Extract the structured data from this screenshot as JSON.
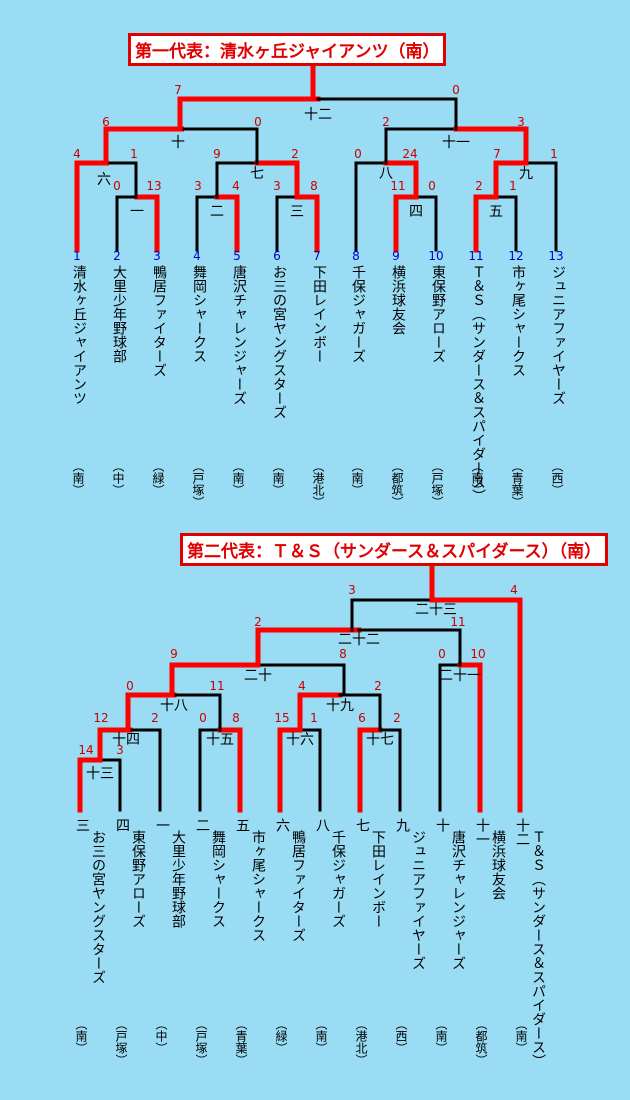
{
  "bracket1": {
    "title": "第一代表：清水ヶ丘ジャイアンツ（南）",
    "teams": [
      {
        "seed": "1",
        "name": "清水ヶ丘ジャイアンツ",
        "area": "（南）"
      },
      {
        "seed": "2",
        "name": "大里少年野球部",
        "area": "（中）"
      },
      {
        "seed": "3",
        "name": "鴨居ファイターズ",
        "area": "（緑）"
      },
      {
        "seed": "4",
        "name": "舞岡シャークス",
        "area": "（戸塚）"
      },
      {
        "seed": "5",
        "name": "唐沢チャレンジャーズ",
        "area": "（南）"
      },
      {
        "seed": "6",
        "name": "お三の宮ヤングスターズ",
        "area": "（南）"
      },
      {
        "seed": "7",
        "name": "下田レインボー",
        "area": "（港北）"
      },
      {
        "seed": "8",
        "name": "千保ジャガーズ",
        "area": "（南）"
      },
      {
        "seed": "9",
        "name": "横浜球友会",
        "area": "（都筑）"
      },
      {
        "seed": "10",
        "name": "東保野アローズ",
        "area": "（戸塚）"
      },
      {
        "seed": "11",
        "name": "Ｔ＆Ｓ（サンダース＆スパイダース）",
        "area": "（南）"
      },
      {
        "seed": "12",
        "name": "市ヶ尾シャークス",
        "area": "（青葉）"
      },
      {
        "seed": "13",
        "name": "ジュニアファイヤーズ",
        "area": "（西）"
      }
    ],
    "matches": [
      "一",
      "二",
      "三",
      "四",
      "五",
      "六",
      "七",
      "八",
      "九",
      "十",
      "十一",
      "十二"
    ],
    "scores": [
      "7",
      "0",
      "6",
      "0",
      "2",
      "3",
      "4",
      "1",
      "9",
      "2",
      "0",
      "24",
      "7",
      "1",
      "0",
      "13",
      "3",
      "4",
      "3",
      "8",
      "11",
      "0",
      "2",
      "1"
    ]
  },
  "bracket2": {
    "title": "第二代表：Ｔ＆Ｓ（サンダース＆スパイダース）（南）",
    "teams": [
      {
        "seed": "三",
        "name": "お三の宮ヤングスターズ",
        "area": "（南）"
      },
      {
        "seed": "四",
        "name": "東保野アローズ",
        "area": "（戸塚）"
      },
      {
        "seed": "一",
        "name": "大里少年野球部",
        "area": "（中）"
      },
      {
        "seed": "二",
        "name": "舞岡シャークス",
        "area": "（戸塚）"
      },
      {
        "seed": "五",
        "name": "市ヶ尾シャークス",
        "area": "（青葉）"
      },
      {
        "seed": "六",
        "name": "鴨居ファイターズ",
        "area": "（緑）"
      },
      {
        "seed": "八",
        "name": "千保ジャガーズ",
        "area": "（南）"
      },
      {
        "seed": "七",
        "name": "下田レインボー",
        "area": "（港北）"
      },
      {
        "seed": "九",
        "name": "ジュニアファイヤーズ",
        "area": "（西）"
      },
      {
        "seed": "十",
        "name": "唐沢チャレンジャーズ",
        "area": "（南）"
      },
      {
        "seed": "十一",
        "name": "横浜球友会",
        "area": "（都筑）"
      },
      {
        "seed": "十二",
        "name": "Ｔ＆Ｓ（サンダース＆スパイダース）",
        "area": "（南）"
      }
    ],
    "matches": [
      "十三",
      "十四",
      "十五",
      "十六",
      "十七",
      "十八",
      "十九",
      "二十",
      "二十一",
      "二十二",
      "二十三"
    ],
    "scores": [
      "3",
      "4",
      "2",
      "11",
      "9",
      "8",
      "0",
      "10",
      "0",
      "11",
      "4",
      "2",
      "12",
      "2",
      "0",
      "8",
      "15",
      "1",
      "6",
      "2",
      "14",
      "3"
    ]
  },
  "colors": {
    "background": "#99dcf3",
    "winner": "#ff0000",
    "line": "#000000",
    "seed_blue": "#0000cc",
    "score": "#cc0000"
  }
}
